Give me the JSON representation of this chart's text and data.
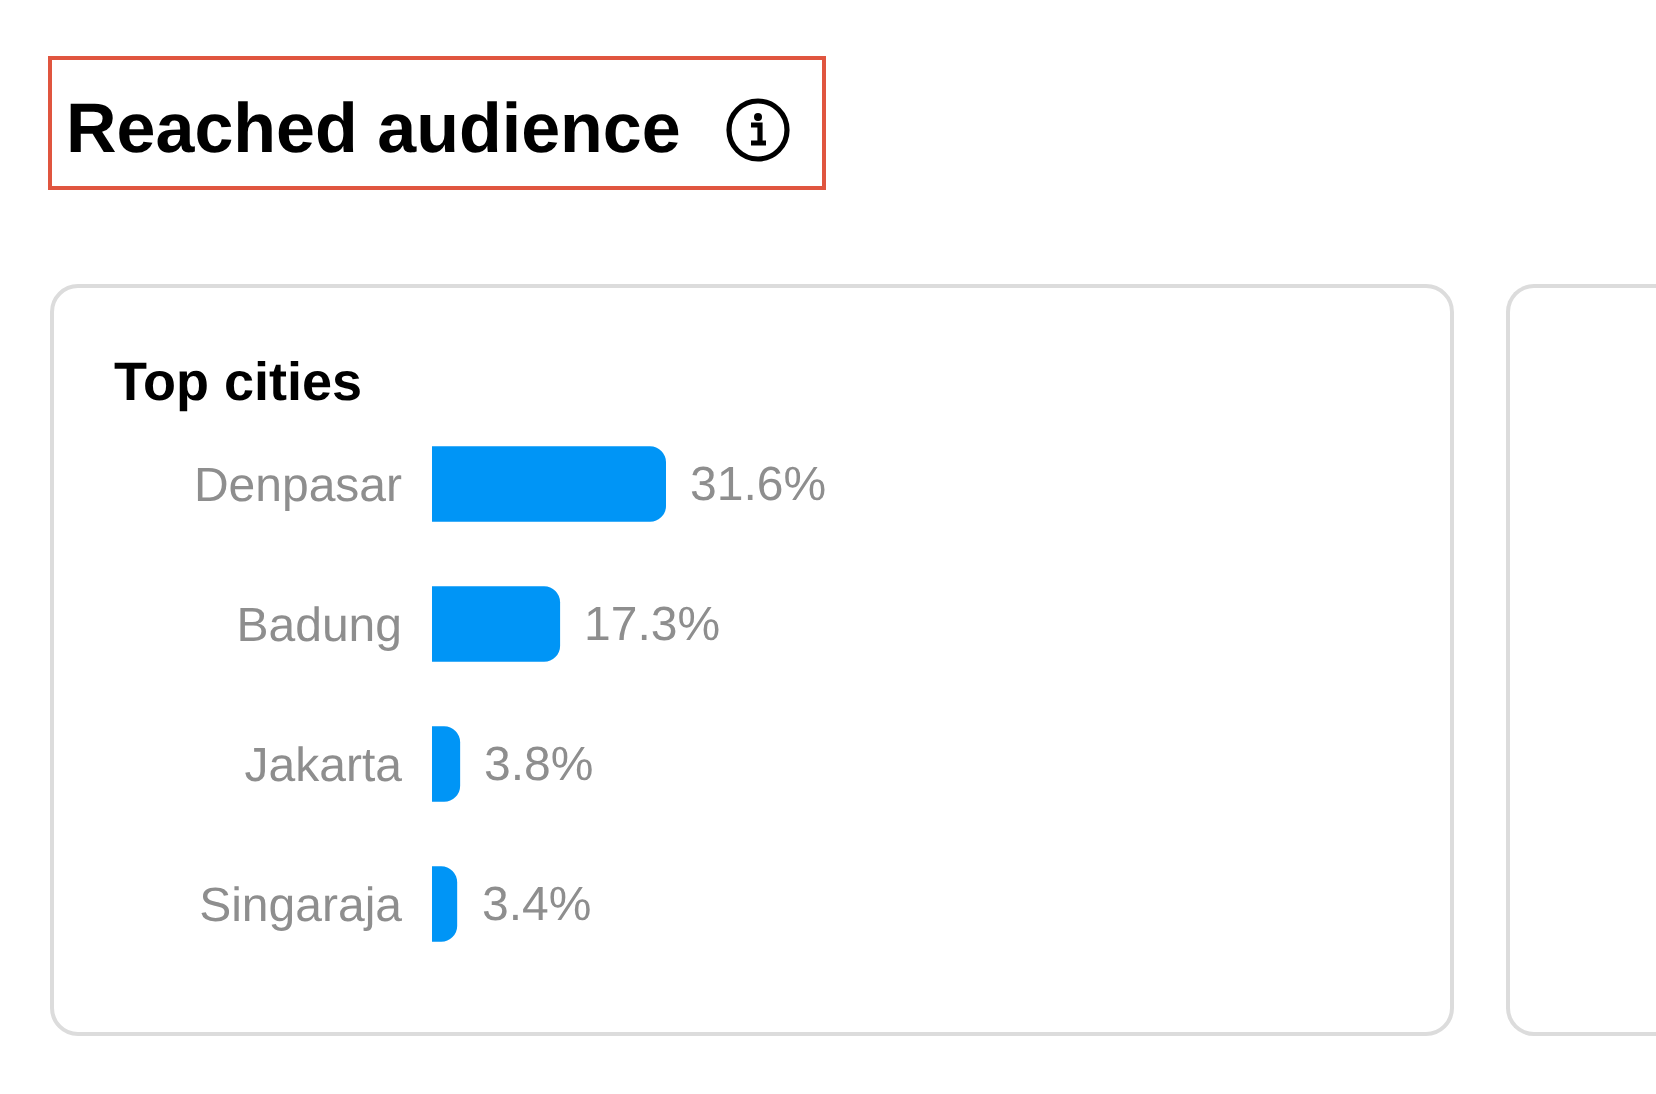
{
  "chart_data": {
    "type": "bar",
    "orientation": "horizontal",
    "title": "Reached audience",
    "subtitle": "Top cities",
    "categories": [
      "Denpasar",
      "Badung",
      "Jakarta",
      "Singaraja"
    ],
    "values": [
      31.6,
      17.3,
      3.8,
      3.4
    ],
    "color": "#0095f6",
    "value_labels": [
      "31.6%",
      "17.3%",
      "3.8%",
      "3.4%"
    ],
    "tick_labels": "y"
  }
}
